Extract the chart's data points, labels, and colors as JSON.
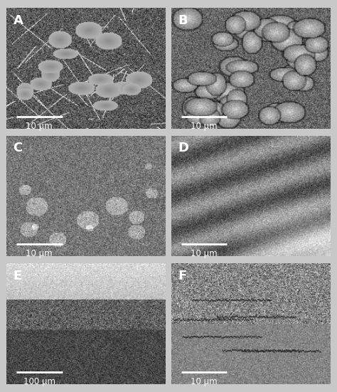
{
  "panels": [
    {
      "label": "A",
      "scale_text": "10 μm",
      "row": 0,
      "col": 0
    },
    {
      "label": "B",
      "scale_text": "10 μm",
      "row": 0,
      "col": 1
    },
    {
      "label": "C",
      "scale_text": "10 μm",
      "row": 1,
      "col": 0
    },
    {
      "label": "D",
      "scale_text": "10 μm",
      "row": 1,
      "col": 1
    },
    {
      "label": "E",
      "scale_text": "100 μm",
      "row": 2,
      "col": 0
    },
    {
      "label": "F",
      "scale_text": "10 μm",
      "row": 2,
      "col": 1
    }
  ],
  "border_color": "#ffffff",
  "label_color": "#ffffff",
  "scale_color": "#ffffff",
  "background": "#e0e0e0",
  "fig_bg": "#c8c8c8",
  "label_fontsize": 13,
  "scale_fontsize": 8.5,
  "nrows": 3,
  "ncols": 2
}
